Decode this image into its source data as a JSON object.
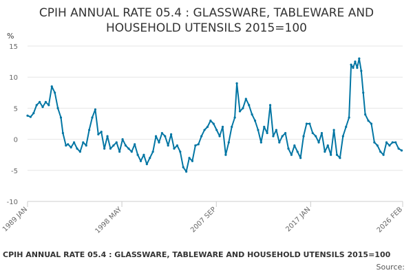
{
  "title_lines": [
    "CPIH ANNUAL RATE 05.4 : GLASSWARE, TABLEWARE AND",
    "HOUSEHOLD UTENSILS 2015=100"
  ],
  "footer_title": "CPIH ANNUAL RATE 05.4 : GLASSWARE, TABLEWARE AND HOUSEHOLD UTENSILS 2015=100",
  "source_label": "Source:",
  "colors": {
    "series": "#0075a3",
    "grid": "#e6e6e6",
    "text": "#333333"
  },
  "chart_data": {
    "type": "line",
    "title": "CPIH ANNUAL RATE 05.4 : GLASSWARE, TABLEWARE AND HOUSEHOLD UTENSILS 2015=100",
    "ylabel": "%",
    "ylim": [
      -10,
      15
    ],
    "xlim": [
      1989.0,
      2026.1
    ],
    "yticks": [
      15,
      10,
      5,
      0,
      -5,
      -10
    ],
    "xticks": [
      {
        "label": "1989 JAN",
        "x": 1989.0
      },
      {
        "label": "1998 MAY",
        "x": 1998.33
      },
      {
        "label": "2007 SEP",
        "x": 2007.67
      },
      {
        "label": "2017 JAN",
        "x": 2017.0
      },
      {
        "label": "2026 FEB",
        "x": 2026.1
      }
    ],
    "grid": true,
    "legend": "none",
    "markers": true,
    "series": [
      {
        "x": [
          1989.0,
          1989.3,
          1989.6,
          1989.9,
          1990.2,
          1990.5,
          1990.8,
          1991.1,
          1991.4,
          1991.7,
          1992.0,
          1992.3,
          1992.5,
          1992.8,
          1993.0,
          1993.3,
          1993.6,
          1993.9,
          1994.2,
          1994.5,
          1994.8,
          1995.1,
          1995.4,
          1995.7,
          1996.0,
          1996.3,
          1996.6,
          1996.9,
          1997.2,
          1997.5,
          1997.8,
          1998.1,
          1998.4,
          1998.7,
          1999.0,
          1999.3,
          1999.6,
          1999.9,
          2000.2,
          2000.5,
          2000.8,
          2001.1,
          2001.4,
          2001.7,
          2002.0,
          2002.3,
          2002.6,
          2002.9,
          2003.2,
          2003.5,
          2003.8,
          2004.1,
          2004.4,
          2004.7,
          2005.0,
          2005.3,
          2005.6,
          2005.9,
          2006.2,
          2006.5,
          2006.8,
          2007.1,
          2007.4,
          2007.7,
          2008.0,
          2008.3,
          2008.6,
          2008.9,
          2009.2,
          2009.5,
          2009.7,
          2010.0,
          2010.3,
          2010.6,
          2010.9,
          2011.2,
          2011.5,
          2011.8,
          2012.1,
          2012.4,
          2012.7,
          2013.0,
          2013.3,
          2013.6,
          2013.9,
          2014.2,
          2014.5,
          2014.8,
          2015.1,
          2015.4,
          2015.7,
          2016.0,
          2016.3,
          2016.6,
          2016.9,
          2017.2,
          2017.5,
          2017.8,
          2018.1,
          2018.4,
          2018.7,
          2019.0,
          2019.3,
          2019.6,
          2019.9,
          2020.2,
          2020.5,
          2020.8,
          2021.0,
          2021.2,
          2021.4,
          2021.6,
          2021.8,
          2022.0,
          2022.2,
          2022.4,
          2022.7,
          2023.0,
          2023.3,
          2023.6,
          2023.9,
          2024.2,
          2024.5,
          2024.8,
          2025.1,
          2025.4,
          2025.7,
          2026.0
        ],
        "y": [
          3.8,
          3.6,
          4.2,
          5.5,
          6.0,
          5.2,
          6.0,
          5.5,
          8.5,
          7.5,
          5.0,
          3.5,
          1.0,
          -1.0,
          -0.8,
          -1.3,
          -0.5,
          -1.5,
          -2.0,
          -0.5,
          -1.0,
          1.5,
          3.5,
          4.8,
          0.8,
          1.2,
          -1.5,
          0.5,
          -1.5,
          -1.0,
          -0.5,
          -2.0,
          0.0,
          -1.0,
          -1.5,
          -2.0,
          -0.8,
          -2.5,
          -3.5,
          -2.5,
          -4.0,
          -3.0,
          -2.0,
          0.5,
          -0.5,
          1.0,
          0.5,
          -1.0,
          0.8,
          -1.5,
          -1.0,
          -2.0,
          -4.5,
          -5.2,
          -3.0,
          -3.5,
          -1.0,
          -0.8,
          0.5,
          1.5,
          2.0,
          3.0,
          2.5,
          1.5,
          0.5,
          2.0,
          -2.5,
          -0.5,
          2.0,
          3.5,
          9.0,
          4.5,
          5.0,
          6.5,
          5.5,
          4.0,
          3.0,
          1.5,
          -0.5,
          2.0,
          1.0,
          5.5,
          0.5,
          1.5,
          -0.5,
          0.5,
          1.0,
          -1.5,
          -2.5,
          -1.0,
          -2.0,
          -3.0,
          0.5,
          2.5,
          2.5,
          1.0,
          0.5,
          -0.5,
          1.0,
          -2.0,
          -1.0,
          -2.5,
          1.5,
          -2.5,
          -3.0,
          0.5,
          2.0,
          3.5,
          12.0,
          11.5,
          12.5,
          11.5,
          13.0,
          11.0,
          7.5,
          4.0,
          3.0,
          2.5,
          -0.5,
          -1.0,
          -2.0,
          -2.5,
          -0.5,
          -1.0,
          -0.5,
          -0.5,
          -1.5,
          -1.8
        ]
      }
    ]
  }
}
